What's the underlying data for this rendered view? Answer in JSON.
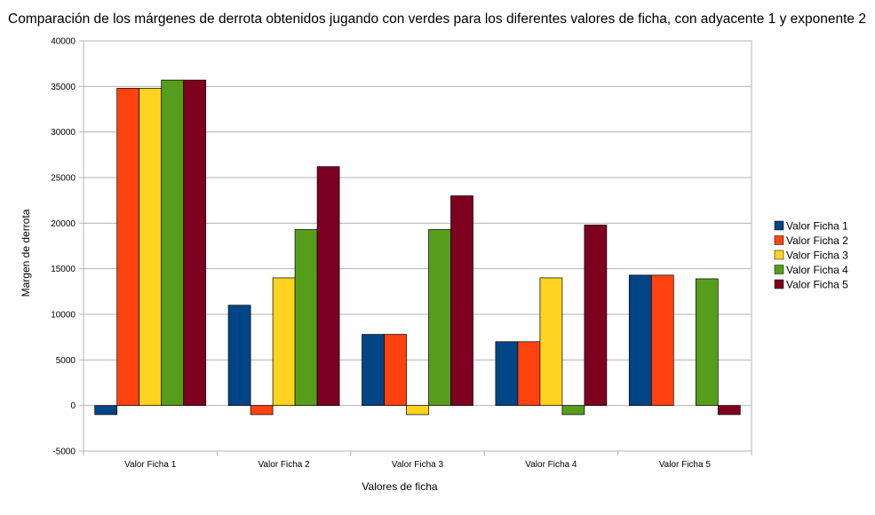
{
  "chart_data": {
    "type": "bar",
    "title": "Comparación de los márgenes de derrota obtenidos jugando con verdes para los diferentes valores de ficha, con adyacente 1 y exponente 2",
    "xlabel": "Valores de ficha",
    "ylabel": "Margen de derrota",
    "ylim": [
      -5000,
      40000
    ],
    "yticks": [
      -5000,
      0,
      5000,
      10000,
      15000,
      20000,
      25000,
      30000,
      35000,
      40000
    ],
    "grid": true,
    "legend_position": "right",
    "categories": [
      "Valor Ficha 1",
      "Valor Ficha 2",
      "Valor Ficha 3",
      "Valor Ficha 4",
      "Valor Ficha 5"
    ],
    "series": [
      {
        "name": "Valor Ficha 1",
        "color": "#004586",
        "values": [
          -1000,
          11000,
          7800,
          7000,
          14300
        ]
      },
      {
        "name": "Valor Ficha 2",
        "color": "#ff420e",
        "values": [
          34800,
          -1000,
          7800,
          7000,
          14300
        ]
      },
      {
        "name": "Valor Ficha 3",
        "color": "#ffd320",
        "values": [
          34800,
          14000,
          -1000,
          14000,
          0
        ]
      },
      {
        "name": "Valor Ficha 4",
        "color": "#579d1c",
        "values": [
          35700,
          19300,
          19300,
          -1000,
          13900
        ]
      },
      {
        "name": "Valor Ficha 5",
        "color": "#7e0021",
        "values": [
          35700,
          26200,
          23000,
          19800,
          -1000
        ]
      }
    ]
  }
}
